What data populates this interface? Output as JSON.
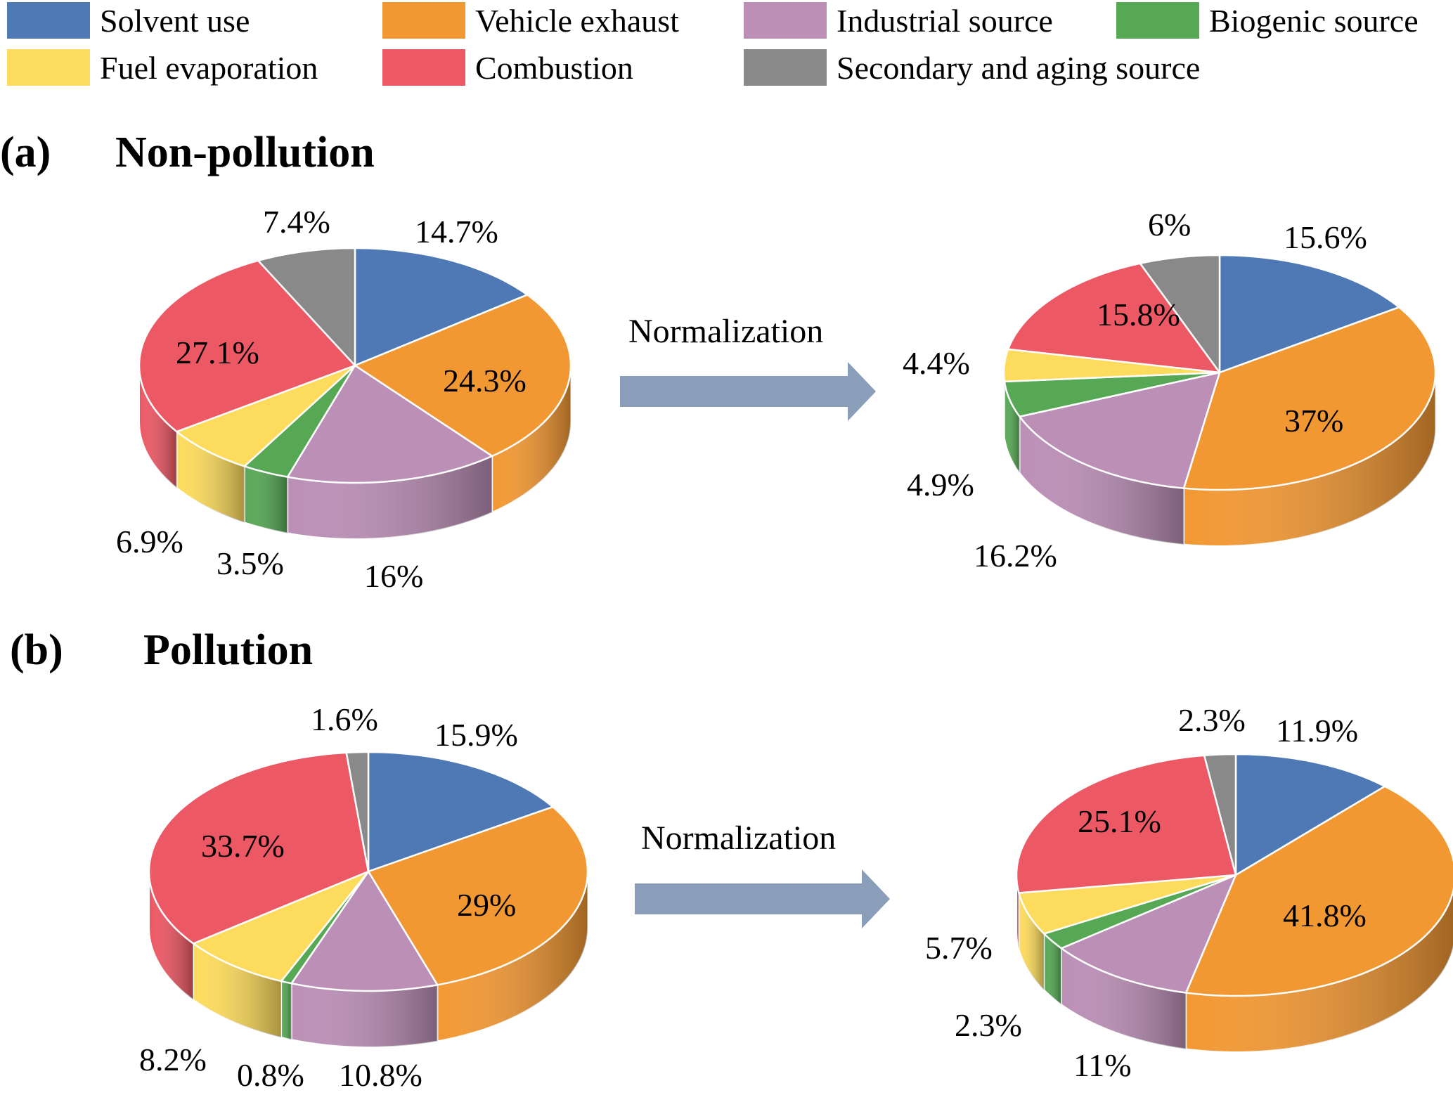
{
  "legend": [
    {
      "label": "Solvent use",
      "color": "#4E79B4"
    },
    {
      "label": "Vehicle exhaust",
      "color": "#F29833"
    },
    {
      "label": "Industrial source",
      "color": "#BB8FB6"
    },
    {
      "label": "Biogenic source",
      "color": "#56A855"
    },
    {
      "label": "Fuel evaporation",
      "color": "#FDDB5C"
    },
    {
      "label": "Combustion",
      "color": "#EC5864"
    },
    {
      "label": "Secondary and aging source",
      "color": "#898989"
    }
  ],
  "panels": [
    {
      "letter": "(a)",
      "title": "Non-pollution",
      "arrow_label": "Normalization"
    },
    {
      "letter": "(b)",
      "title": "Pollution",
      "arrow_label": "Normalization"
    }
  ],
  "chart_data": [
    {
      "type": "pie",
      "categories": [
        "Solvent use",
        "Vehicle exhaust",
        "Industrial source",
        "Biogenic source",
        "Fuel evaporation",
        "Combustion",
        "Secondary and aging source"
      ],
      "values": [
        14.7,
        24.3,
        16,
        3.5,
        6.9,
        27.1,
        7.4
      ],
      "labels": [
        "14.7%",
        "24.3%",
        "16%",
        "3.5%",
        "6.9%",
        "27.1%",
        "7.4%"
      ]
    },
    {
      "type": "pie",
      "categories": [
        "Solvent use",
        "Vehicle exhaust",
        "Industrial source",
        "Biogenic source",
        "Fuel evaporation",
        "Combustion",
        "Secondary and aging source"
      ],
      "values": [
        15.6,
        37,
        16.2,
        4.9,
        4.4,
        15.8,
        6
      ],
      "labels": [
        "15.6%",
        "37%",
        "16.2%",
        "4.9%",
        "4.4%",
        "15.8%",
        "6%"
      ]
    },
    {
      "type": "pie",
      "categories": [
        "Solvent use",
        "Vehicle exhaust",
        "Industrial source",
        "Biogenic source",
        "Fuel evaporation",
        "Combustion",
        "Secondary and aging source"
      ],
      "values": [
        15.9,
        29,
        10.8,
        0.8,
        8.2,
        33.7,
        1.6
      ],
      "labels": [
        "15.9%",
        "29%",
        "10.8%",
        "0.8%",
        "8.2%",
        "33.7%",
        "1.6%"
      ]
    },
    {
      "type": "pie",
      "categories": [
        "Solvent use",
        "Vehicle exhaust",
        "Industrial source",
        "Biogenic source",
        "Fuel evaporation",
        "Combustion",
        "Secondary and aging source"
      ],
      "values": [
        11.9,
        41.8,
        11,
        2.3,
        5.7,
        25.1,
        2.3
      ],
      "labels": [
        "11.9%",
        "41.8%",
        "11%",
        "2.3%",
        "5.7%",
        "25.1%",
        "2.3%"
      ]
    }
  ]
}
